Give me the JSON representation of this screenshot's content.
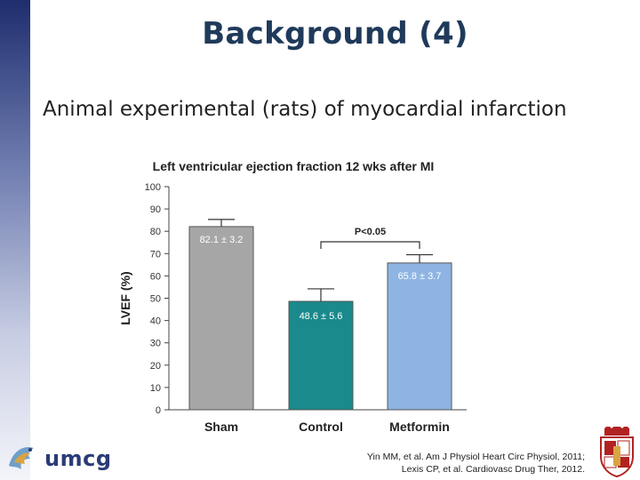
{
  "slide": {
    "title": "Background (4)",
    "subtitle": "Animal experimental (rats) of myocardial infarction"
  },
  "chart_data": {
    "type": "bar",
    "title": "Left ventricular ejection fraction 12 wks after MI",
    "ylabel": "LVEF (%)",
    "xlabel": "",
    "ylim": [
      0,
      100
    ],
    "yticks": [
      0,
      10,
      20,
      30,
      40,
      50,
      60,
      70,
      80,
      90,
      100
    ],
    "categories": [
      "Sham",
      "Control",
      "Metformin"
    ],
    "values": [
      82.1,
      48.6,
      65.8
    ],
    "errors": [
      3.2,
      5.6,
      3.7
    ],
    "data_labels": [
      "82.1 ± 3.2",
      "48.6 ± 5.6",
      "65.8 ± 3.7"
    ],
    "bar_colors": [
      "#a6a6a6",
      "#1a8a8c",
      "#8eb4e3"
    ],
    "annotation": "P<0.05",
    "annotation_between": [
      "Control",
      "Metformin"
    ],
    "grid": false
  },
  "citation": {
    "line1": "Yin MM, et al. Am J Physiol Heart Circ Physiol, 2011;",
    "line2": "Lexis CP, et al. Cardiovasc Drug Ther, 2012."
  },
  "logo": {
    "text": "umcg",
    "icon": "umcg-dragon-logo-icon"
  },
  "crest": {
    "icon": "university-groningen-crest-icon"
  }
}
